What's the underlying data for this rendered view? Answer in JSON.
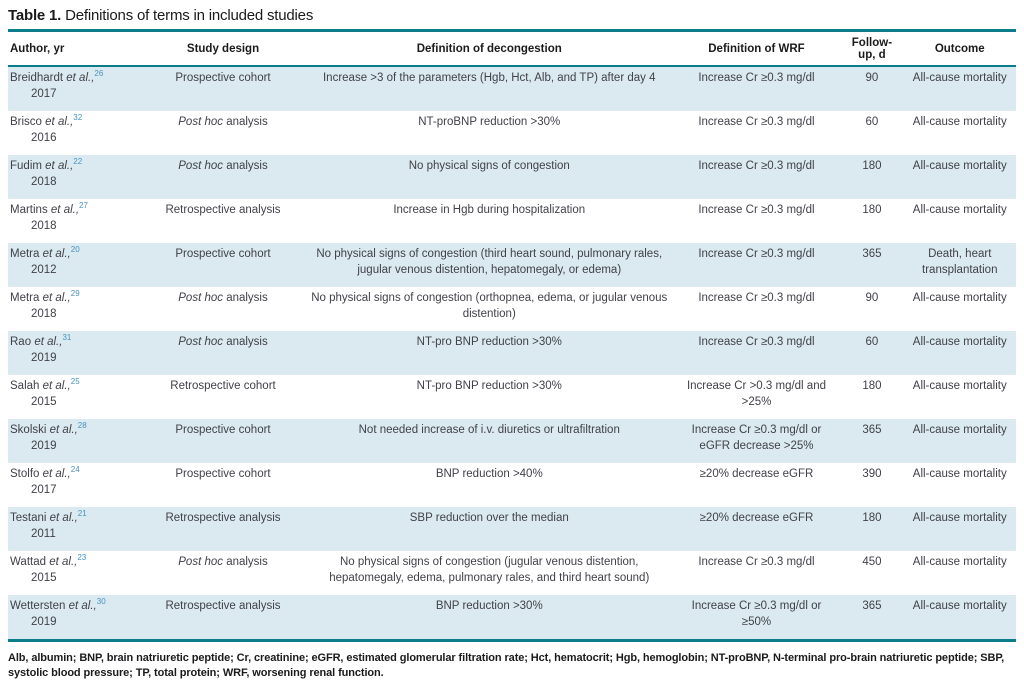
{
  "table": {
    "title_label": "Table 1.",
    "title_text": "Definitions of terms in included studies",
    "columns": [
      "Author, yr",
      "Study design",
      "Definition of decongestion",
      "Definition of WRF",
      "Follow-up, d",
      "Outcome"
    ],
    "rows": [
      {
        "author": "Breidhardt",
        "etal": "et al.,",
        "ref": "26",
        "year": "2017",
        "design_italic": "",
        "design_plain": "Prospective cohort",
        "decongestion": "Increase >3 of the parameters (Hgb, Hct, Alb, and TP) after day 4",
        "wrf": "Increase Cr ≥0.3 mg/dl",
        "followup": "90",
        "outcome": "All-cause mortality"
      },
      {
        "author": "Brisco",
        "etal": "et al.,",
        "ref": "32",
        "year": "2016",
        "design_italic": "Post hoc",
        "design_plain": " analysis",
        "decongestion": "NT-proBNP reduction >30%",
        "wrf": "Increase Cr ≥0.3 mg/dl",
        "followup": "60",
        "outcome": "All-cause mortality"
      },
      {
        "author": "Fudim",
        "etal": "et al.,",
        "ref": "22",
        "year": "2018",
        "design_italic": "Post hoc",
        "design_plain": " analysis",
        "decongestion": "No physical signs of congestion",
        "wrf": "Increase Cr ≥0.3 mg/dl",
        "followup": "180",
        "outcome": "All-cause mortality"
      },
      {
        "author": "Martins",
        "etal": "et al.,",
        "ref": "27",
        "year": "2018",
        "design_italic": "",
        "design_plain": "Retrospective analysis",
        "decongestion": "Increase in Hgb during hospitalization",
        "wrf": "Increase Cr ≥0.3 mg/dl",
        "followup": "180",
        "outcome": "All-cause mortality"
      },
      {
        "author": "Metra",
        "etal": "et al.,",
        "ref": "20",
        "year": "2012",
        "design_italic": "",
        "design_plain": "Prospective cohort",
        "decongestion": "No physical signs of congestion (third heart sound, pulmonary rales, jugular venous distention, hepatomegaly, or edema)",
        "wrf": "Increase Cr ≥0.3 mg/dl",
        "followup": "365",
        "outcome": "Death, heart transplantation"
      },
      {
        "author": "Metra",
        "etal": "et al.,",
        "ref": "29",
        "year": "2018",
        "design_italic": "Post hoc",
        "design_plain": " analysis",
        "decongestion": "No physical signs of congestion (orthopnea, edema, or jugular venous distention)",
        "wrf": "Increase Cr ≥0.3 mg/dl",
        "followup": "90",
        "outcome": "All-cause mortality"
      },
      {
        "author": "Rao",
        "etal": "et al.,",
        "ref": "31",
        "year": "2019",
        "design_italic": "Post hoc",
        "design_plain": " analysis",
        "decongestion": "NT-pro BNP reduction >30%",
        "wrf": "Increase Cr ≥0.3 mg/dl",
        "followup": "60",
        "outcome": "All-cause mortality"
      },
      {
        "author": "Salah",
        "etal": "et al.,",
        "ref": "25",
        "year": "2015",
        "design_italic": "",
        "design_plain": "Retrospective cohort",
        "decongestion": "NT-pro BNP reduction >30%",
        "wrf": "Increase Cr >0.3 mg/dl and >25%",
        "followup": "180",
        "outcome": "All-cause mortality"
      },
      {
        "author": "Skolski",
        "etal": "et al.,",
        "ref": "28",
        "year": "2019",
        "design_italic": "",
        "design_plain": "Prospective cohort",
        "decongestion": "Not needed increase of i.v. diuretics or ultrafiltration",
        "wrf": "Increase Cr ≥0.3 mg/dl or eGFR decrease >25%",
        "followup": "365",
        "outcome": "All-cause mortality"
      },
      {
        "author": "Stolfo",
        "etal": "et al.,",
        "ref": "24",
        "year": "2017",
        "design_italic": "",
        "design_plain": "Prospective cohort",
        "decongestion": "BNP reduction >40%",
        "wrf": "≥20% decrease eGFR",
        "followup": "390",
        "outcome": "All-cause mortality"
      },
      {
        "author": "Testani",
        "etal": "et al.,",
        "ref": "21",
        "year": "2011",
        "design_italic": "",
        "design_plain": "Retrospective analysis",
        "decongestion": "SBP reduction over the median",
        "wrf": "≥20% decrease eGFR",
        "followup": "180",
        "outcome": "All-cause mortality"
      },
      {
        "author": "Wattad",
        "etal": "et al.,",
        "ref": "23",
        "year": "2015",
        "design_italic": "Post hoc",
        "design_plain": " analysis",
        "decongestion": "No physical signs of congestion (jugular venous distention, hepatomegaly, edema, pulmonary rales, and third heart sound)",
        "wrf": "Increase Cr ≥0.3 mg/dl",
        "followup": "450",
        "outcome": "All-cause mortality"
      },
      {
        "author": "Wettersten",
        "etal": "et al.,",
        "ref": "30",
        "year": "2019",
        "design_italic": "",
        "design_plain": "Retrospective analysis",
        "decongestion": "BNP reduction >30%",
        "wrf": "Increase Cr ≥0.3 mg/dl or ≥50%",
        "followup": "365",
        "outcome": "All-cause mortality"
      }
    ],
    "footnote": "Alb, albumin; BNP, brain natriuretic peptide; Cr, creatinine; eGFR, estimated glomerular filtration rate; Hct, hematocrit; Hgb, hemoglobin; NT-proBNP, N-terminal pro-brain natriuretic peptide; SBP, systolic blood pressure; TP, total protein; WRF, worsening renal function."
  },
  "colors": {
    "accent_teal": "#0c7b8a",
    "row_stripe": "#daeaf0",
    "reference_blue": "#4793c0"
  }
}
